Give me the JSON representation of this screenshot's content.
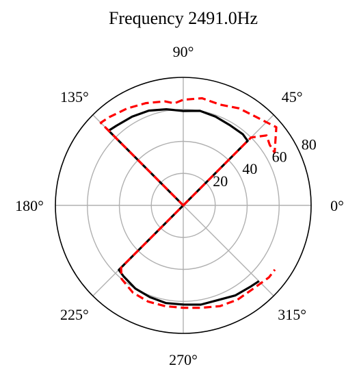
{
  "chart_data": {
    "type": "polar-line",
    "title": "Frequency 2491.0Hz",
    "theta_unit": "degrees",
    "theta_ticks": [
      0,
      45,
      90,
      135,
      180,
      225,
      270,
      315
    ],
    "theta_tick_labels": [
      "0°",
      "45°",
      "90°",
      "135°",
      "180°",
      "225°",
      "270°",
      "315°"
    ],
    "r_range": [
      0,
      80
    ],
    "r_ticks": [
      20,
      40,
      60,
      80
    ],
    "r_tick_labels": [
      "20",
      "40",
      "60",
      "80"
    ],
    "grid": true,
    "series": [
      {
        "color": "#000000",
        "dash": "solid",
        "points": [
          [
            45,
            0
          ],
          [
            45,
            57
          ],
          [
            50,
            58
          ],
          [
            60,
            58
          ],
          [
            70,
            59
          ],
          [
            80,
            60
          ],
          [
            90,
            59
          ],
          [
            100,
            61
          ],
          [
            110,
            63
          ],
          [
            120,
            64
          ],
          [
            130,
            65
          ],
          [
            135,
            66
          ],
          [
            225,
            0
          ],
          [
            225,
            57
          ],
          [
            230,
            58
          ],
          [
            240,
            60
          ],
          [
            250,
            61
          ],
          [
            260,
            62
          ],
          [
            270,
            62
          ],
          [
            280,
            63
          ],
          [
            290,
            63
          ],
          [
            300,
            65
          ],
          [
            310,
            66
          ],
          [
            315,
            67
          ]
        ]
      },
      {
        "color": "#ff0000",
        "dash": "dashed",
        "points": [
          [
            45,
            0
          ],
          [
            45,
            60
          ],
          [
            40,
            68
          ],
          [
            35,
            66
          ],
          [
            30,
            66
          ],
          [
            40,
            76
          ],
          [
            60,
            70
          ],
          [
            70,
            67
          ],
          [
            80,
            68
          ],
          [
            90,
            66
          ],
          [
            95,
            64
          ],
          [
            100,
            66
          ],
          [
            110,
            68
          ],
          [
            120,
            70
          ],
          [
            130,
            72
          ],
          [
            135,
            73
          ],
          [
            225,
            0
          ],
          [
            225,
            55
          ],
          [
            230,
            60
          ],
          [
            240,
            63
          ],
          [
            250,
            64
          ],
          [
            260,
            64
          ],
          [
            270,
            64
          ],
          [
            280,
            65
          ],
          [
            290,
            67
          ],
          [
            300,
            68
          ],
          [
            310,
            68
          ],
          [
            320,
            70
          ],
          [
            325,
            70
          ]
        ]
      }
    ]
  }
}
